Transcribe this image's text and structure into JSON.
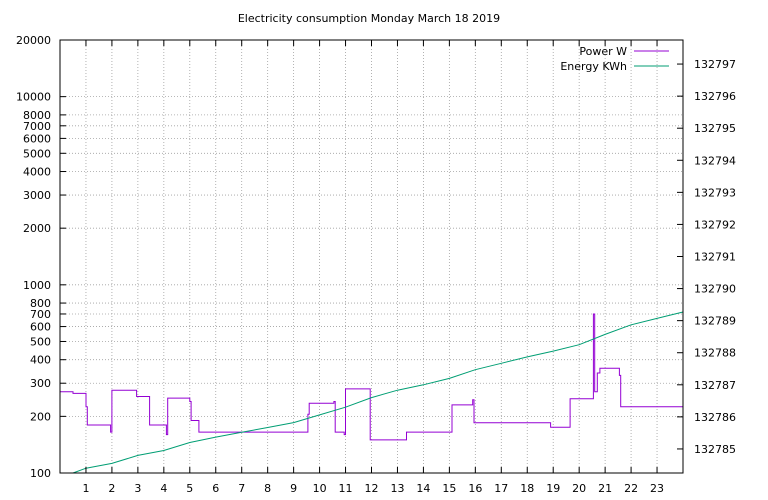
{
  "chart_data": {
    "type": "line",
    "title": "Electricity consumption Monday March 18 2019",
    "xlim": [
      0,
      24
    ],
    "xticks": [
      1,
      2,
      3,
      4,
      5,
      6,
      7,
      8,
      9,
      10,
      11,
      12,
      13,
      14,
      15,
      16,
      17,
      18,
      19,
      20,
      21,
      22,
      23
    ],
    "y_left": {
      "scale": "log",
      "lim": [
        100,
        20000
      ],
      "ticks": [
        100,
        200,
        300,
        400,
        500,
        600,
        700,
        800,
        1000,
        2000,
        3000,
        4000,
        5000,
        6000,
        7000,
        8000,
        10000,
        20000
      ]
    },
    "y_right": {
      "scale": "linear",
      "lim": [
        132784.25,
        132797.75
      ],
      "ticks": [
        132785,
        132786,
        132787,
        132788,
        132789,
        132790,
        132791,
        132792,
        132793,
        132794,
        132795,
        132796,
        132797
      ]
    },
    "grid": true,
    "legend_position": "top-right",
    "series": [
      {
        "name": "Power W",
        "axis": "left",
        "color": "#9400d3",
        "step": true,
        "points": [
          [
            0,
            270
          ],
          [
            0.5,
            265
          ],
          [
            1.0,
            225
          ],
          [
            1.05,
            180
          ],
          [
            1.9,
            180
          ],
          [
            1.95,
            165
          ],
          [
            2.0,
            275
          ],
          [
            2.9,
            275
          ],
          [
            2.95,
            255
          ],
          [
            3.4,
            255
          ],
          [
            3.45,
            180
          ],
          [
            4.05,
            180
          ],
          [
            4.1,
            160
          ],
          [
            4.15,
            250
          ],
          [
            4.95,
            250
          ],
          [
            5.0,
            240
          ],
          [
            5.05,
            190
          ],
          [
            5.3,
            190
          ],
          [
            5.35,
            165
          ],
          [
            9.5,
            165
          ],
          [
            9.55,
            205
          ],
          [
            9.6,
            235
          ],
          [
            10.5,
            235
          ],
          [
            10.55,
            240
          ],
          [
            10.6,
            165
          ],
          [
            10.9,
            165
          ],
          [
            10.95,
            160
          ],
          [
            11.0,
            280
          ],
          [
            11.9,
            280
          ],
          [
            11.95,
            150
          ],
          [
            13.3,
            150
          ],
          [
            13.35,
            165
          ],
          [
            15.05,
            165
          ],
          [
            15.1,
            230
          ],
          [
            15.85,
            230
          ],
          [
            15.9,
            245
          ],
          [
            15.95,
            185
          ],
          [
            18.85,
            185
          ],
          [
            18.9,
            175
          ],
          [
            19.6,
            175
          ],
          [
            19.65,
            248
          ],
          [
            20.5,
            248
          ],
          [
            20.55,
            700
          ],
          [
            20.6,
            270
          ],
          [
            20.7,
            340
          ],
          [
            20.8,
            360
          ],
          [
            21.5,
            360
          ],
          [
            21.55,
            330
          ],
          [
            21.6,
            225
          ],
          [
            24,
            225
          ]
        ]
      },
      {
        "name": "Energy KWh",
        "axis": "right",
        "color": "#009e73",
        "step": false,
        "points": [
          [
            0.5,
            132784.25
          ],
          [
            1,
            132784.4
          ],
          [
            2,
            132784.55
          ],
          [
            3,
            132784.8
          ],
          [
            4,
            132784.95
          ],
          [
            5,
            132785.2
          ],
          [
            6,
            132785.37
          ],
          [
            7,
            132785.52
          ],
          [
            8,
            132785.67
          ],
          [
            9,
            132785.82
          ],
          [
            10,
            132786.06
          ],
          [
            11,
            132786.3
          ],
          [
            12,
            132786.6
          ],
          [
            13,
            132786.83
          ],
          [
            14,
            132787.0
          ],
          [
            15,
            132787.2
          ],
          [
            16,
            132787.47
          ],
          [
            17,
            132787.67
          ],
          [
            18,
            132787.87
          ],
          [
            19,
            132788.05
          ],
          [
            20,
            132788.25
          ],
          [
            21,
            132788.57
          ],
          [
            22,
            132788.87
          ],
          [
            23,
            132789.07
          ],
          [
            24,
            132789.27
          ]
        ]
      }
    ]
  }
}
